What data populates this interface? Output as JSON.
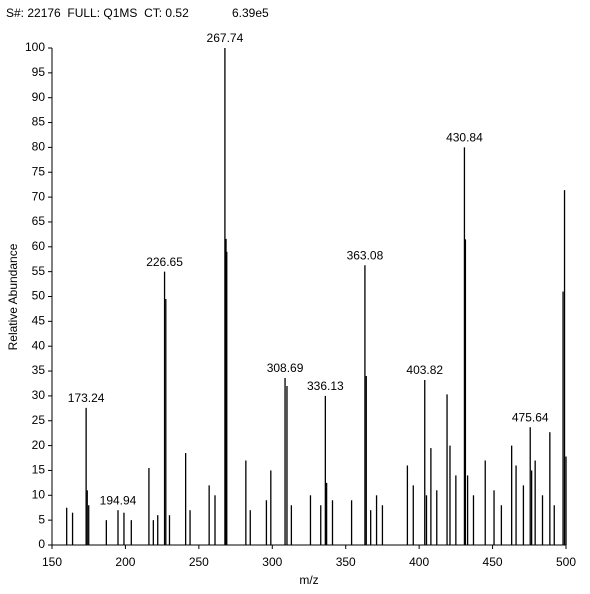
{
  "chart_data": {
    "type": "stem",
    "title": "S#: 22176  FULL: Q1MS  CT: 0.52",
    "subtitle": "6.39e5",
    "x_label": "m/z",
    "y_label": "Relative Abundance",
    "color": "#000000",
    "xlim": [
      150,
      500
    ],
    "xticks": [
      150,
      200,
      250,
      300,
      350,
      400,
      450,
      500
    ],
    "ylim": [
      0,
      100
    ],
    "yticks": [
      0,
      5,
      10,
      15,
      20,
      25,
      30,
      35,
      40,
      45,
      50,
      55,
      60,
      65,
      70,
      75,
      80,
      85,
      90,
      95,
      100
    ],
    "x": [
      160,
      164,
      173.24,
      174,
      175,
      187,
      194.94,
      199,
      204,
      216,
      219,
      222,
      226.65,
      227.5,
      230,
      241,
      244,
      257,
      261,
      267.74,
      268.5,
      269,
      282,
      285,
      296,
      299,
      308.69,
      310,
      313,
      326,
      333,
      336.13,
      337,
      341,
      354,
      363.08,
      364,
      367,
      371,
      375,
      392,
      396,
      403.82,
      405,
      408,
      412,
      419,
      421,
      425,
      430.84,
      431.5,
      433,
      437,
      445,
      451,
      456,
      463,
      466,
      471,
      475.64,
      476.6,
      479,
      484,
      489,
      492,
      498,
      499,
      500
    ],
    "values": [
      7.5,
      6.5,
      27.6,
      11,
      8,
      5,
      7,
      6.5,
      5,
      15.5,
      5,
      6,
      55,
      49.5,
      6,
      18.5,
      7,
      12,
      10,
      100,
      61.6,
      59,
      17,
      7,
      9,
      15,
      33.6,
      32,
      8,
      10,
      8,
      30,
      12.5,
      9,
      9,
      56.3,
      34,
      7,
      10,
      8,
      16,
      12,
      33.2,
      10,
      19.5,
      11,
      30.3,
      20,
      14,
      80,
      61.5,
      14,
      10,
      17,
      11,
      8,
      20,
      16,
      12,
      23.7,
      15,
      17,
      10,
      22.7,
      8,
      51,
      71.4,
      17.8
    ],
    "x_labels": [
      null,
      null,
      "173.24",
      null,
      null,
      null,
      "194.94",
      null,
      null,
      null,
      null,
      null,
      "226.65",
      null,
      null,
      null,
      null,
      null,
      null,
      "267.74",
      null,
      null,
      null,
      null,
      null,
      null,
      "308.69",
      null,
      null,
      null,
      null,
      "336.13",
      null,
      null,
      null,
      "363.08",
      null,
      null,
      null,
      null,
      null,
      null,
      "403.82",
      null,
      null,
      null,
      null,
      null,
      null,
      "430.84",
      null,
      null,
      null,
      null,
      null,
      null,
      null,
      null,
      null,
      "475.64",
      null,
      null,
      null,
      null,
      null,
      null,
      null,
      null
    ]
  }
}
